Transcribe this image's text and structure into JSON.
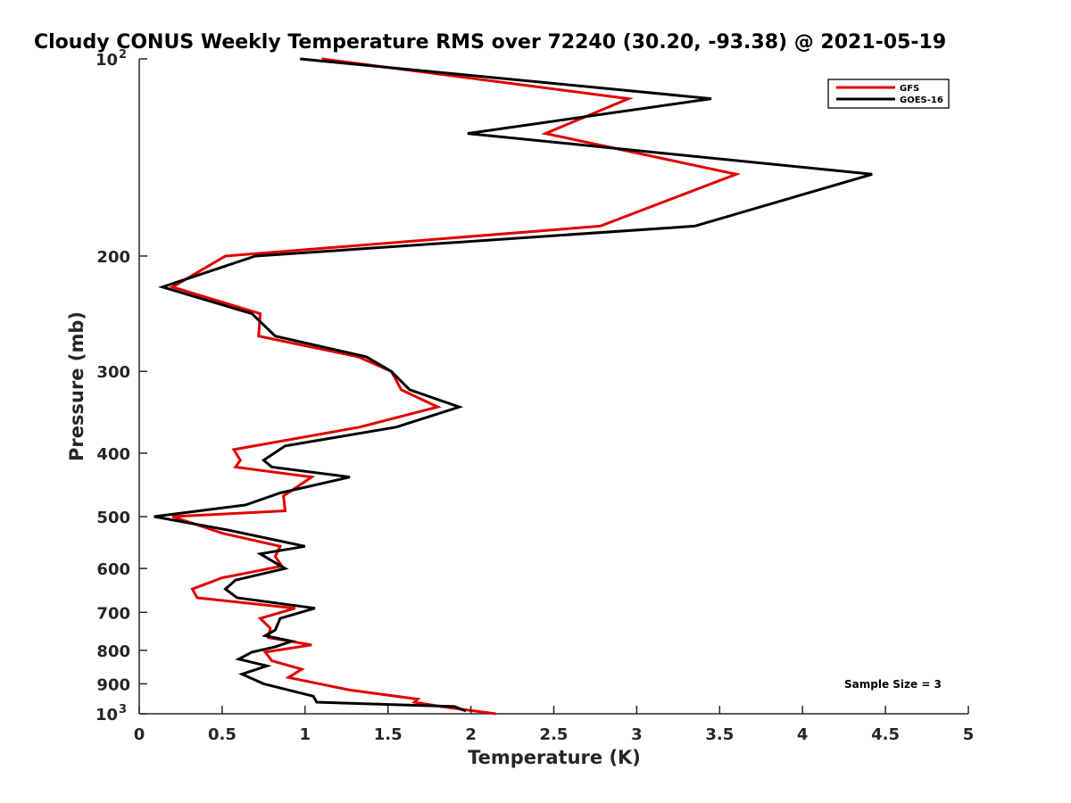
{
  "chart_data": {
    "type": "line",
    "title": "Cloudy CONUS Weekly Temperature RMS over 72240 (30.20, -93.38) @ 2021-05-19",
    "xlabel": "Temperature (K)",
    "ylabel": "Pressure (mb)",
    "xlim": [
      0,
      5
    ],
    "ylim": [
      100,
      1000
    ],
    "y_scale": "log",
    "y_reversed": true,
    "grid": false,
    "legend_position": "top-right",
    "x_ticks": [
      "0",
      "0.5",
      "1",
      "1.5",
      "2",
      "2.5",
      "3",
      "3.5",
      "4",
      "4.5",
      "5"
    ],
    "x_tick_values": [
      0,
      0.5,
      1,
      1.5,
      2,
      2.5,
      3,
      3.5,
      4,
      4.5,
      5
    ],
    "y_ticks": [
      {
        "value": 100,
        "base": "10",
        "exp": "2"
      },
      {
        "value": 200,
        "label": "200"
      },
      {
        "value": 300,
        "label": "300"
      },
      {
        "value": 400,
        "label": "400"
      },
      {
        "value": 500,
        "label": "500"
      },
      {
        "value": 600,
        "label": "600"
      },
      {
        "value": 700,
        "label": "700"
      },
      {
        "value": 800,
        "label": "800"
      },
      {
        "value": 900,
        "label": "900"
      },
      {
        "value": 1000,
        "base": "10",
        "exp": "3"
      }
    ],
    "annotation": "Sample Size = 3",
    "series": [
      {
        "name": "GFS",
        "color": "#e00000",
        "points": [
          [
            1.1,
            100
          ],
          [
            2.95,
            115
          ],
          [
            2.45,
            130
          ],
          [
            3.6,
            150
          ],
          [
            2.78,
            180
          ],
          [
            0.52,
            200
          ],
          [
            0.2,
            223
          ],
          [
            0.73,
            245
          ],
          [
            0.72,
            265
          ],
          [
            1.32,
            285
          ],
          [
            1.52,
            300
          ],
          [
            1.58,
            320
          ],
          [
            1.8,
            340
          ],
          [
            1.33,
            365
          ],
          [
            0.57,
            395
          ],
          [
            0.61,
            410
          ],
          [
            0.58,
            420
          ],
          [
            1.04,
            435
          ],
          [
            0.87,
            465
          ],
          [
            0.88,
            490
          ],
          [
            0.2,
            500
          ],
          [
            0.5,
            530
          ],
          [
            0.85,
            555
          ],
          [
            0.82,
            575
          ],
          [
            0.86,
            595
          ],
          [
            0.5,
            620
          ],
          [
            0.32,
            645
          ],
          [
            0.35,
            665
          ],
          [
            0.94,
            690
          ],
          [
            0.73,
            715
          ],
          [
            0.79,
            740
          ],
          [
            0.78,
            765
          ],
          [
            1.04,
            785
          ],
          [
            0.76,
            805
          ],
          [
            0.8,
            830
          ],
          [
            0.98,
            855
          ],
          [
            0.9,
            880
          ],
          [
            1.27,
            920
          ],
          [
            1.68,
            950
          ],
          [
            1.66,
            960
          ],
          [
            1.82,
            975
          ],
          [
            2.15,
            1000
          ]
        ]
      },
      {
        "name": "GOES-16",
        "color": "#000000",
        "points": [
          [
            0.97,
            100
          ],
          [
            3.45,
            115
          ],
          [
            1.98,
            130
          ],
          [
            4.42,
            150
          ],
          [
            3.35,
            180
          ],
          [
            0.7,
            200
          ],
          [
            0.14,
            223
          ],
          [
            0.68,
            245
          ],
          [
            0.82,
            265
          ],
          [
            1.37,
            285
          ],
          [
            1.52,
            300
          ],
          [
            1.63,
            320
          ],
          [
            1.93,
            340
          ],
          [
            1.55,
            365
          ],
          [
            0.88,
            390
          ],
          [
            0.75,
            410
          ],
          [
            0.8,
            420
          ],
          [
            1.27,
            435
          ],
          [
            0.85,
            460
          ],
          [
            0.64,
            480
          ],
          [
            0.09,
            500
          ],
          [
            0.55,
            525
          ],
          [
            1.0,
            555
          ],
          [
            0.73,
            570
          ],
          [
            0.83,
            590
          ],
          [
            0.88,
            600
          ],
          [
            0.58,
            625
          ],
          [
            0.52,
            645
          ],
          [
            0.59,
            665
          ],
          [
            1.06,
            690
          ],
          [
            0.85,
            715
          ],
          [
            0.82,
            745
          ],
          [
            0.76,
            760
          ],
          [
            0.92,
            775
          ],
          [
            0.82,
            790
          ],
          [
            0.68,
            805
          ],
          [
            0.6,
            825
          ],
          [
            0.77,
            845
          ],
          [
            0.62,
            870
          ],
          [
            0.75,
            900
          ],
          [
            1.05,
            940
          ],
          [
            1.07,
            960
          ],
          [
            1.9,
            975
          ],
          [
            1.97,
            990
          ]
        ]
      }
    ]
  }
}
